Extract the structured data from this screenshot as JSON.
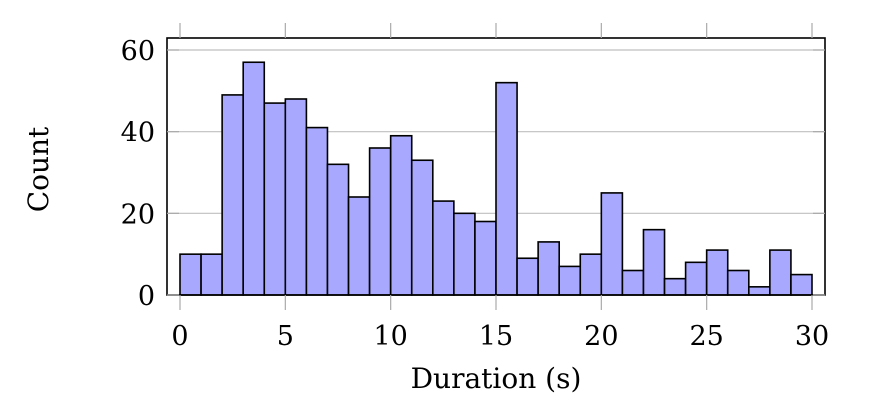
{
  "chart_data": {
    "type": "bar",
    "title": "",
    "xlabel": "Duration (s)",
    "ylabel": "Count",
    "xlim": [
      0,
      30
    ],
    "ylim": [
      0,
      63
    ],
    "bin_width": 1,
    "bin_edges_start": 0,
    "x_ticks": [
      0,
      5,
      10,
      15,
      20,
      25,
      30
    ],
    "y_ticks": [
      0,
      20,
      40,
      60
    ],
    "grid": "y-major",
    "legend": null,
    "categories": [
      "0-1",
      "1-2",
      "2-3",
      "3-4",
      "4-5",
      "5-6",
      "6-7",
      "7-8",
      "8-9",
      "9-10",
      "10-11",
      "11-12",
      "12-13",
      "13-14",
      "14-15",
      "15-16",
      "16-17",
      "17-18",
      "18-19",
      "19-20",
      "20-21",
      "21-22",
      "22-23",
      "23-24",
      "24-25",
      "25-26",
      "26-27",
      "27-28",
      "28-29",
      "29-30"
    ],
    "values": [
      10,
      10,
      49,
      57,
      47,
      48,
      41,
      32,
      24,
      36,
      39,
      33,
      23,
      20,
      18,
      52,
      9,
      13,
      7,
      10,
      25,
      6,
      16,
      4,
      8,
      11,
      6,
      2,
      11,
      5
    ],
    "colors": {
      "bar_fill": "#a8a8ff",
      "bar_edge": "#000000",
      "grid": "#bfbfbf",
      "tick": "#aaaaaa"
    }
  }
}
